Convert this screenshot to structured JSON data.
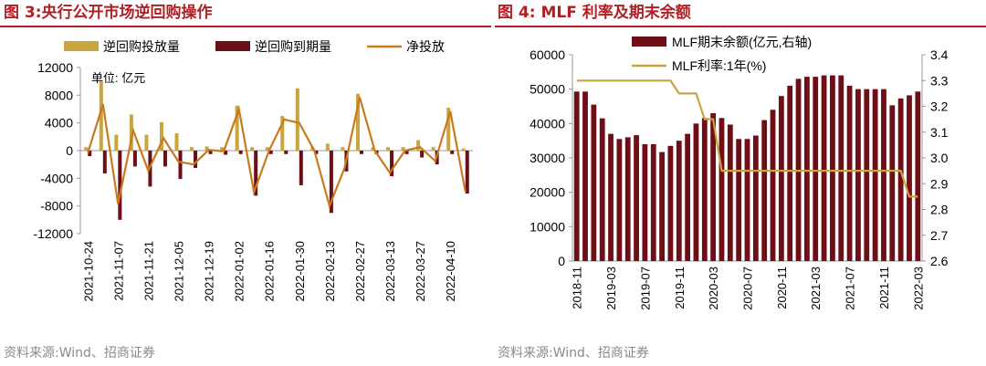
{
  "colors": {
    "accent": "#b11f24",
    "reverse_repo": "#c8a53e",
    "maturity": "#6e0e16",
    "net": "#c97a1e",
    "mlf_bar": "#6e0e16",
    "mlf_rate": "#c8a53e"
  },
  "figures": [
    {
      "title": "图 3:央行公开市场逆回购操作",
      "source": "资料来源:Wind、招商证券"
    },
    {
      "title": "图 4: MLF 利率及期末余额",
      "source": "资料来源:Wind、招商证券"
    }
  ],
  "chart_data": [
    {
      "type": "bar",
      "unit_note": "单位: 亿元",
      "legend": [
        "逆回购投放量",
        "逆回购到期量",
        "净投放"
      ],
      "ylim": [
        -12000,
        12000
      ],
      "yticks": [
        "12000",
        "8000",
        "4000",
        "0",
        "-4000",
        "-8000",
        "-12000"
      ],
      "yticks_num": [
        12000,
        8000,
        4000,
        0,
        -4000,
        -8000,
        -12000
      ],
      "xtick_labels": [
        "2021-10-24",
        "2021-11-07",
        "2021-11-21",
        "2021-12-05",
        "2021-12-19",
        "2022-01-02",
        "2022-01-16",
        "2022-01-30",
        "2022-02-13",
        "2022-02-27",
        "2022-03-13",
        "2022-03-27",
        "2022-04-10"
      ],
      "series": [
        {
          "name": "逆回购投放量",
          "type": "bar",
          "values": [
            500,
            10000,
            2300,
            5200,
            2300,
            4100,
            2500,
            500,
            600,
            500,
            6500,
            500,
            500,
            5000,
            9000,
            500,
            1000,
            500,
            8200,
            500,
            500,
            500,
            1500,
            500,
            6200,
            300
          ]
        },
        {
          "name": "逆回购到期量",
          "type": "bar",
          "values": [
            -800,
            -3300,
            -10000,
            -2300,
            -5200,
            -2300,
            -4100,
            -2500,
            -500,
            -600,
            -500,
            -6500,
            -500,
            -500,
            -5000,
            -500,
            -9000,
            -3000,
            -500,
            -500,
            -3700,
            -500,
            -1000,
            -2000,
            -500,
            -6200
          ]
        },
        {
          "name": "净投放",
          "type": "line",
          "values": [
            -300,
            6700,
            -7700,
            2900,
            -2900,
            1800,
            -1600,
            -2000,
            100,
            -100,
            6000,
            -6000,
            0,
            4500,
            4000,
            0,
            -8000,
            -2500,
            7700,
            0,
            -3200,
            0,
            500,
            -1500,
            5700,
            -5900
          ]
        }
      ]
    },
    {
      "type": "bar+line",
      "legend": [
        "MLF期末余额(亿元,右轴)",
        "MLF利率:1年(%)"
      ],
      "y_left": {
        "ticks": [
          "60000",
          "50000",
          "40000",
          "30000",
          "20000",
          "10000",
          "0"
        ],
        "range": [
          0,
          60000
        ]
      },
      "y_right": {
        "ticks": [
          "3.4",
          "3.3",
          "3.2",
          "3.1",
          "3.0",
          "2.9",
          "2.8",
          "2.7",
          "2.6"
        ],
        "range": [
          2.6,
          3.4
        ]
      },
      "xtick_labels": [
        "2018-11",
        "2019-03",
        "2019-07",
        "2019-11",
        "2020-03",
        "2020-07",
        "2020-11",
        "2021-03",
        "2021-07",
        "2021-11",
        "2022-03"
      ],
      "series": [
        {
          "name": "MLF期末余额",
          "type": "bar",
          "values": [
            49300,
            49300,
            45500,
            41500,
            37000,
            35500,
            36000,
            36600,
            34000,
            34000,
            31700,
            33500,
            35000,
            37000,
            40000,
            41600,
            43000,
            41600,
            39700,
            35500,
            35500,
            36500,
            41000,
            44000,
            48000,
            51000,
            53000,
            53600,
            53600,
            54000,
            54000,
            54000,
            51000,
            50000,
            50000,
            50000,
            50000,
            45300,
            47300,
            48200,
            49300
          ]
        },
        {
          "name": "MLF利率:1年",
          "type": "line",
          "values": [
            3.3,
            3.3,
            3.3,
            3.3,
            3.3,
            3.3,
            3.3,
            3.3,
            3.3,
            3.3,
            3.3,
            3.3,
            3.25,
            3.25,
            3.25,
            3.15,
            3.15,
            2.95,
            2.95,
            2.95,
            2.95,
            2.95,
            2.95,
            2.95,
            2.95,
            2.95,
            2.95,
            2.95,
            2.95,
            2.95,
            2.95,
            2.95,
            2.95,
            2.95,
            2.95,
            2.95,
            2.95,
            2.95,
            2.95,
            2.85,
            2.85
          ]
        }
      ]
    }
  ]
}
